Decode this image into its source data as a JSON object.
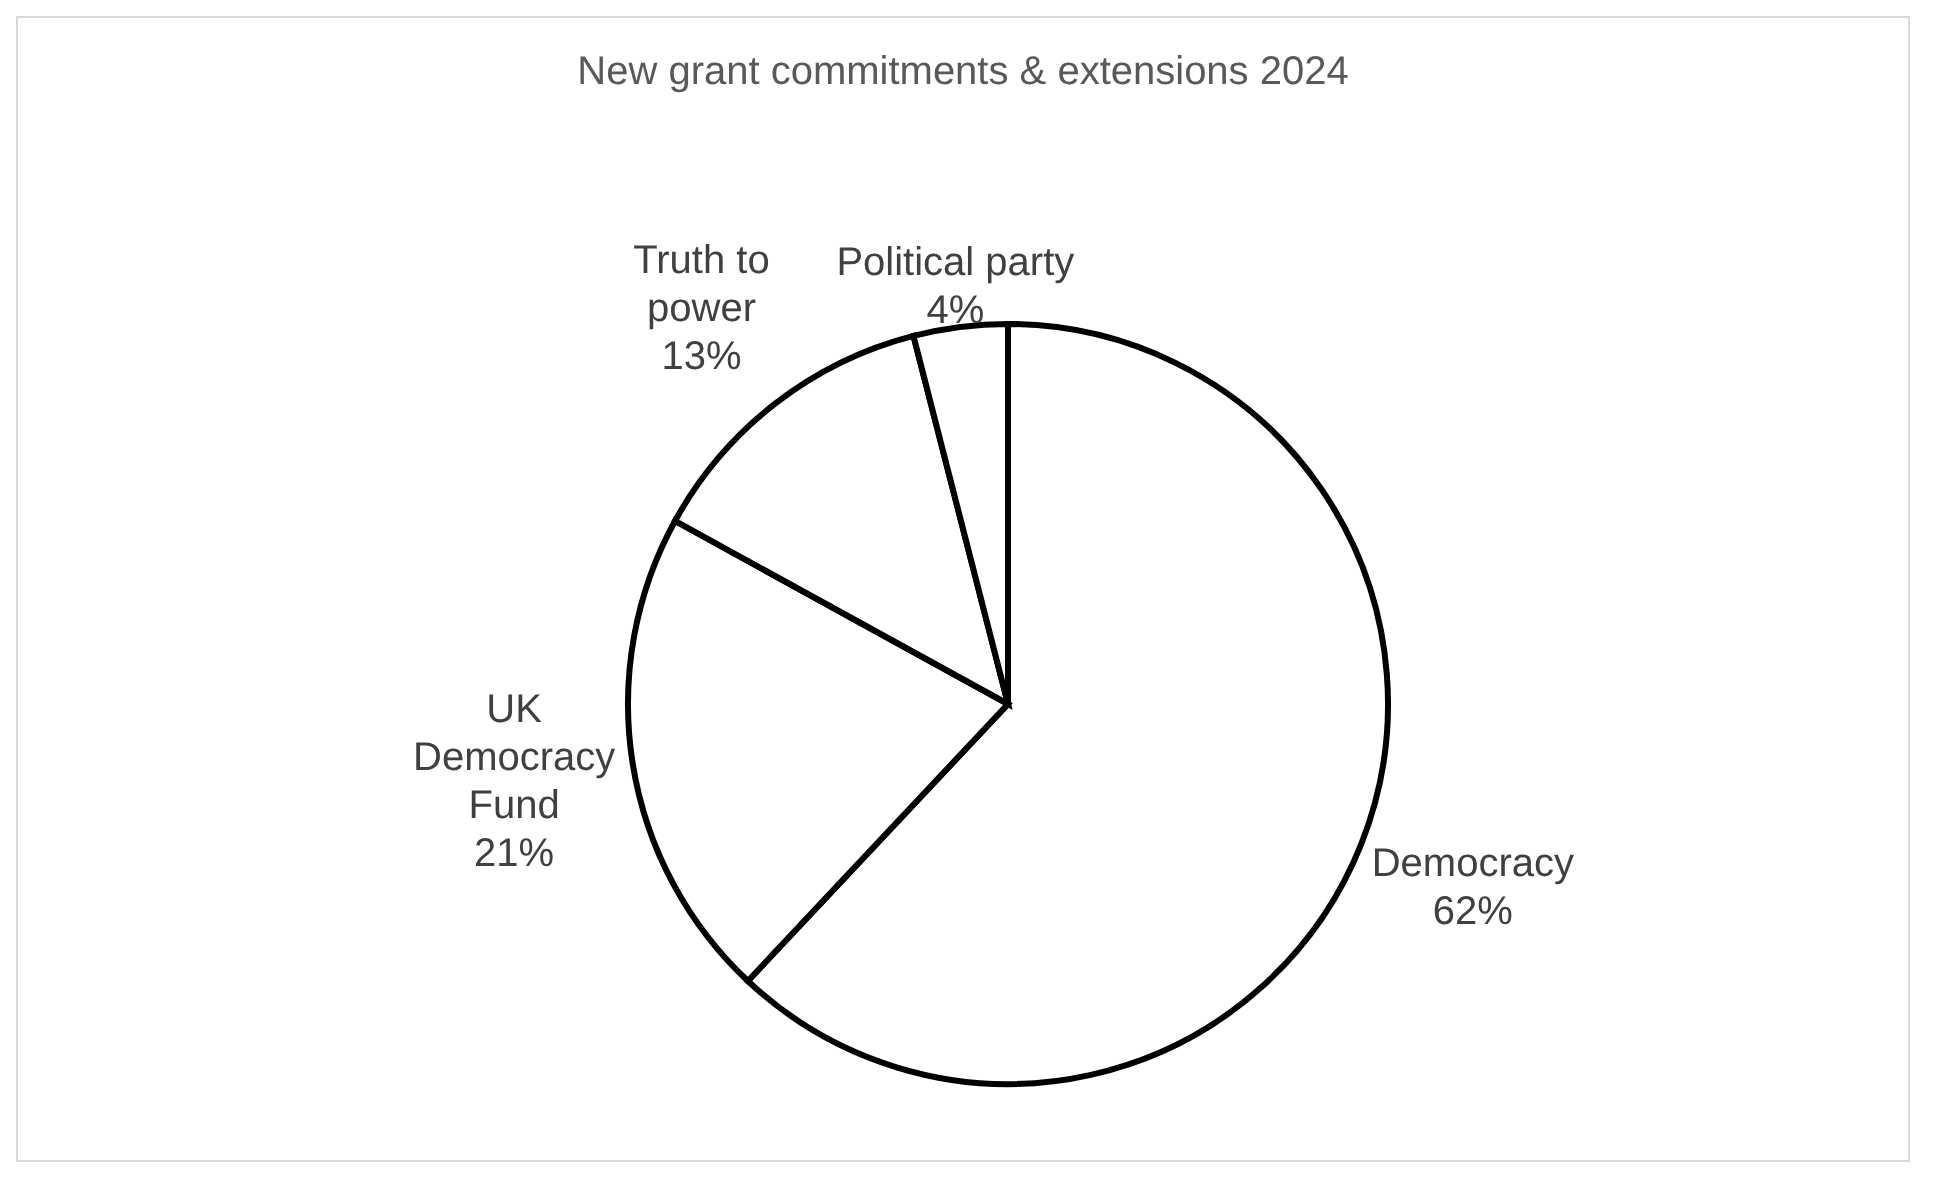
{
  "chart_data": {
    "type": "pie",
    "title": "New grant commitments & extensions 2024",
    "categories": [
      "Democracy",
      "UK Democracy Fund",
      "Truth to power",
      "Political party"
    ],
    "values": [
      62,
      21,
      13,
      4
    ],
    "value_labels": [
      "62%",
      "21%",
      "13%",
      "4%"
    ],
    "colors": [
      "#ffffff",
      "#ffffff",
      "#ffffff",
      "#ffffff"
    ]
  }
}
